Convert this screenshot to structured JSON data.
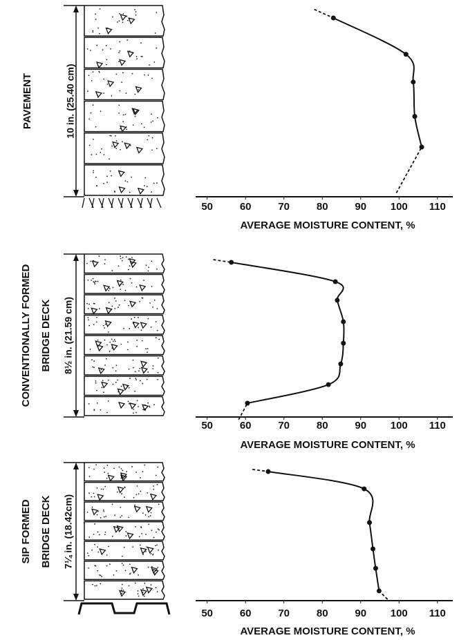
{
  "chart_data": [
    {
      "type": "line",
      "title": "PAVEMENT",
      "depth_label": "10 in. (25.40 cm)",
      "xlabel": "AVERAGE MOISTURE CONTENT, %",
      "xlim": [
        47,
        114
      ],
      "xticks": [
        50,
        60,
        70,
        80,
        90,
        100,
        110
      ],
      "ylim": [
        10,
        0
      ],
      "values": [
        82.9,
        101.8,
        103.7,
        104.1,
        105.9
      ],
      "depth": [
        0.65,
        2.55,
        4.0,
        5.8,
        7.4
      ],
      "ends": {
        "values": [
          77.9,
          99.3
        ],
        "depth": [
          0.2,
          9.8
        ]
      },
      "color": "#111"
    },
    {
      "type": "line",
      "title": [
        "CONVENTIONALLY FORMED",
        "BRIDGE DECK"
      ],
      "depth_label": "8½ in. (21.59 cm)",
      "xlabel": "AVERAGE MOISTURE CONTENT, %",
      "xlim": [
        47,
        114
      ],
      "xticks": [
        50,
        60,
        70,
        80,
        90,
        100,
        110
      ],
      "ylim": [
        8.5,
        0
      ],
      "values": [
        56.3,
        83.4,
        83.9,
        85.5,
        85.5,
        84.8,
        81.6,
        60.5
      ],
      "depth": [
        0.43,
        1.44,
        2.41,
        3.53,
        4.65,
        5.73,
        6.81,
        7.78
      ],
      "ends": {
        "values": [
          51.6,
          58.2
        ],
        "depth": [
          0.29,
          8.64
        ]
      },
      "color": "#111"
    },
    {
      "type": "line",
      "title": [
        "SIP FORMED",
        "BRIDGE DECK"
      ],
      "depth_label": "7¼ in. (18.42cm)",
      "xlabel": "AVERAGE MOISTURE CONTENT, %",
      "xlim": [
        47,
        114
      ],
      "xticks": [
        50,
        60,
        70,
        80,
        90,
        100,
        110
      ],
      "ylim": [
        7.25,
        0
      ],
      "values": [
        65.9,
        90.9,
        92.3,
        93.2,
        93.9,
        94.8
      ],
      "depth": [
        0.47,
        1.38,
        3.15,
        4.53,
        5.55,
        6.74
      ],
      "ends": {
        "values": [
          61.8,
          97.0
        ],
        "depth": [
          0.36,
          7.18
        ]
      },
      "color": "#111"
    }
  ]
}
